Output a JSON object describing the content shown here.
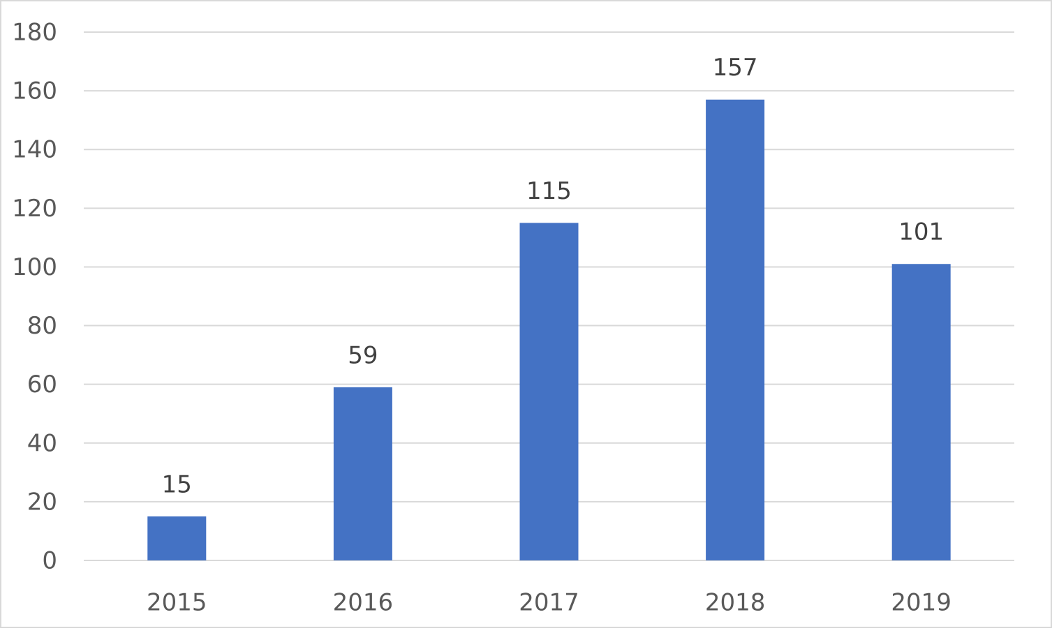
{
  "chart_data": {
    "type": "bar",
    "categories": [
      "2015",
      "2016",
      "2017",
      "2018",
      "2019"
    ],
    "values": [
      15,
      59,
      115,
      157,
      101
    ],
    "color": "#4472c4",
    "ylim": [
      0,
      180
    ],
    "yticks": [
      0,
      20,
      40,
      60,
      80,
      100,
      120,
      140,
      160,
      180
    ],
    "grid": true,
    "data_labels": true
  }
}
